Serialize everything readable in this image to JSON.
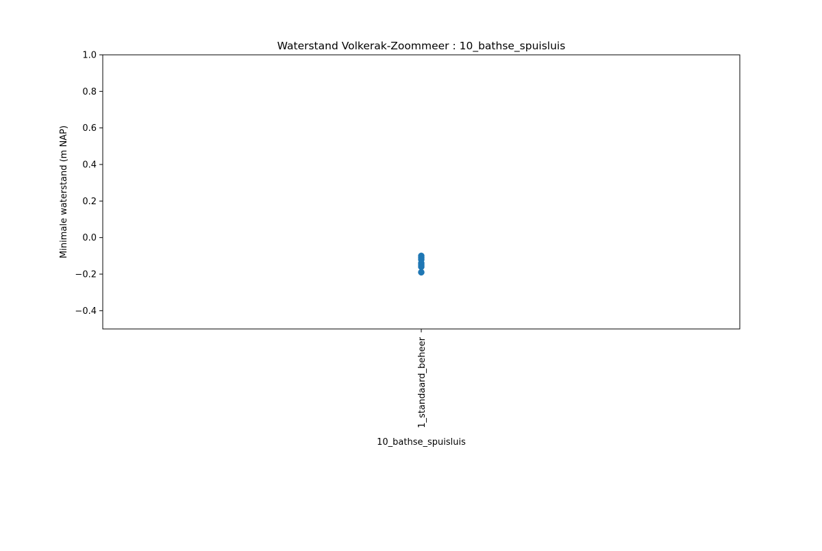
{
  "chart_data": {
    "type": "scatter",
    "title": "Waterstand Volkerak-Zoommeer : 10_bathse_spuisluis",
    "xlabel": "10_bathse_spuisluis",
    "ylabel": "Minimale waterstand (m NAP)",
    "categories": [
      "1_standaard_beheer"
    ],
    "ylim": [
      -0.5,
      1.0
    ],
    "yticks": [
      -0.4,
      -0.2,
      0.0,
      0.2,
      0.4,
      0.6,
      0.8,
      1.0
    ],
    "ytick_labels": [
      "−0.4",
      "−0.2",
      "0.0",
      "0.2",
      "0.4",
      "0.6",
      "0.8",
      "1.0"
    ],
    "grid": false,
    "series": [
      {
        "color": "#1f77b4",
        "points": [
          {
            "x": "1_standaard_beheer",
            "y": -0.1
          },
          {
            "x": "1_standaard_beheer",
            "y": -0.11
          },
          {
            "x": "1_standaard_beheer",
            "y": -0.12
          },
          {
            "x": "1_standaard_beheer",
            "y": -0.14
          },
          {
            "x": "1_standaard_beheer",
            "y": -0.15
          },
          {
            "x": "1_standaard_beheer",
            "y": -0.16
          },
          {
            "x": "1_standaard_beheer",
            "y": -0.19
          }
        ]
      }
    ]
  }
}
